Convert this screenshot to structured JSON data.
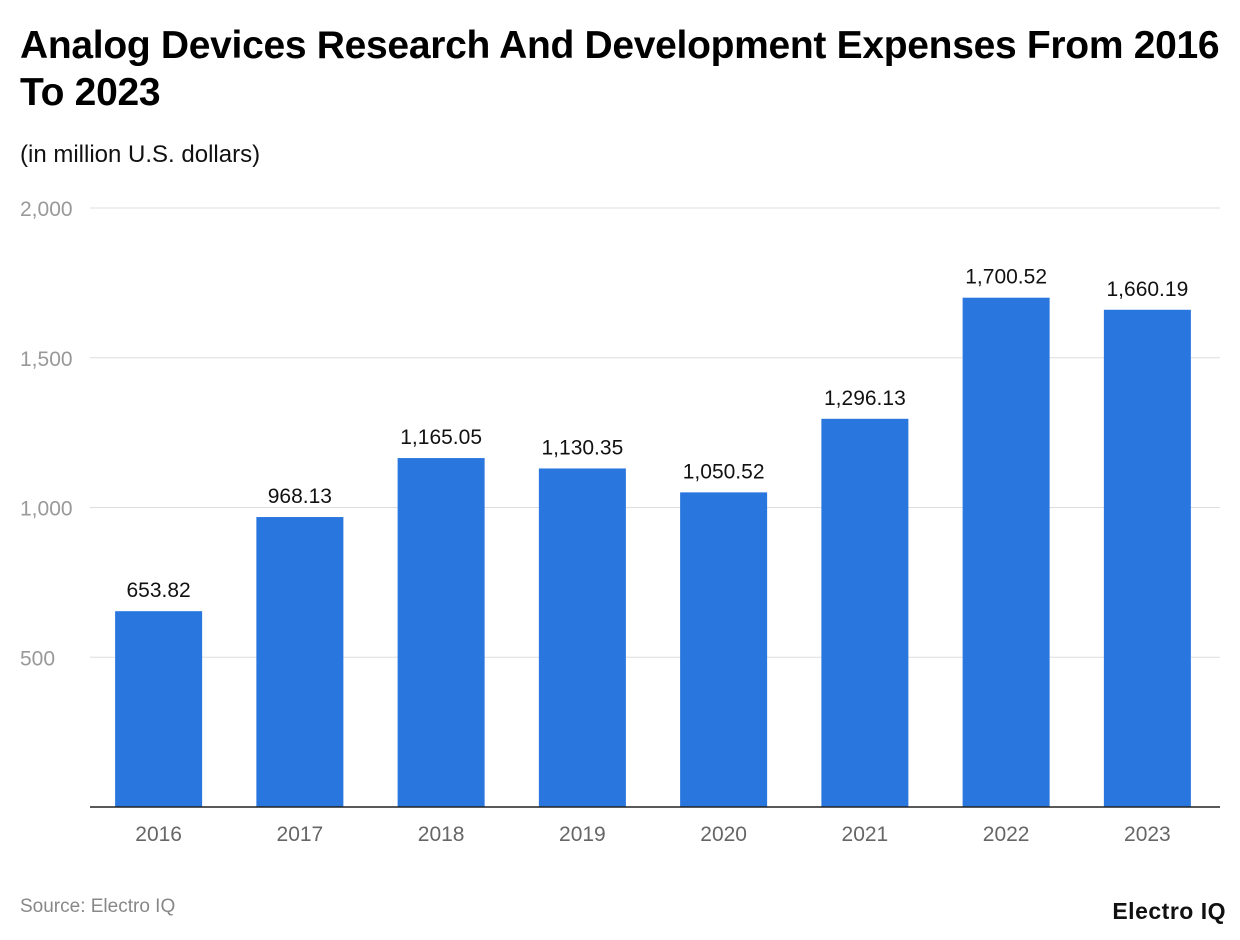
{
  "title": "Analog Devices Research And Development Expenses From 2016 To 2023",
  "subtitle": "(in million U.S. dollars)",
  "source": "Source: Electro IQ",
  "logo": "Electro IQ",
  "colors": {
    "bar": "#2976DE",
    "grid": "#dddddd",
    "axis": "#222222",
    "tick_label": "#999999",
    "category_label": "#666666"
  },
  "chart_data": {
    "type": "bar",
    "categories": [
      "2016",
      "2017",
      "2018",
      "2019",
      "2020",
      "2021",
      "2022",
      "2023"
    ],
    "values": [
      653.82,
      968.13,
      1165.05,
      1130.35,
      1050.52,
      1296.13,
      1700.52,
      1660.19
    ],
    "value_labels": [
      "653.82",
      "968.13",
      "1,165.05",
      "1,130.35",
      "1,050.52",
      "1,296.13",
      "1,700.52",
      "1,660.19"
    ],
    "ylim": [
      0,
      2000
    ],
    "yticks": [
      500,
      1000,
      1500,
      2000
    ],
    "ytick_labels": [
      "500",
      "1,000",
      "1,500",
      "2,000"
    ],
    "grid": true,
    "xlabel": "",
    "ylabel": ""
  }
}
